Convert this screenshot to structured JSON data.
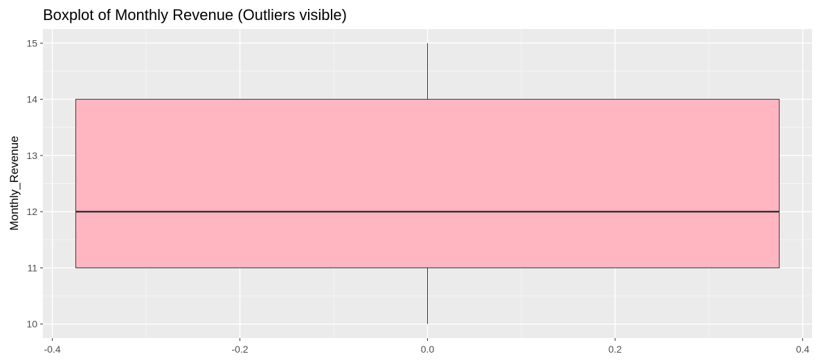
{
  "chart_data": {
    "type": "boxplot",
    "title": "Boxplot of Monthly Revenue (Outliers visible)",
    "xlabel": "",
    "ylabel": "Monthly_Revenue",
    "xlim": [
      -0.41,
      0.41
    ],
    "ylim": [
      9.75,
      15.25
    ],
    "x_ticks": [
      -0.4,
      -0.2,
      0.0,
      0.2,
      0.4
    ],
    "x_tick_labels": [
      "-0.4",
      "-0.2",
      "0.0",
      "0.2",
      "0.4"
    ],
    "y_ticks": [
      10,
      11,
      12,
      13,
      14,
      15
    ],
    "y_tick_labels": [
      "10",
      "11",
      "12",
      "13",
      "14",
      "15"
    ],
    "box": {
      "x_left": -0.375,
      "x_right": 0.375,
      "x_center": 0.0,
      "min": 10,
      "q1": 11,
      "median": 12,
      "q3": 14,
      "max": 15
    },
    "grid": true,
    "legend": "none",
    "colors": {
      "panel_background": "#ebebeb",
      "grid_major": "#ffffff",
      "grid_minor": "#f5f5f5",
      "box_fill": "#ffb6c1",
      "box_outline": "#333333",
      "tick_text": "#4d4d4d",
      "tick_mark": "#333333"
    }
  }
}
